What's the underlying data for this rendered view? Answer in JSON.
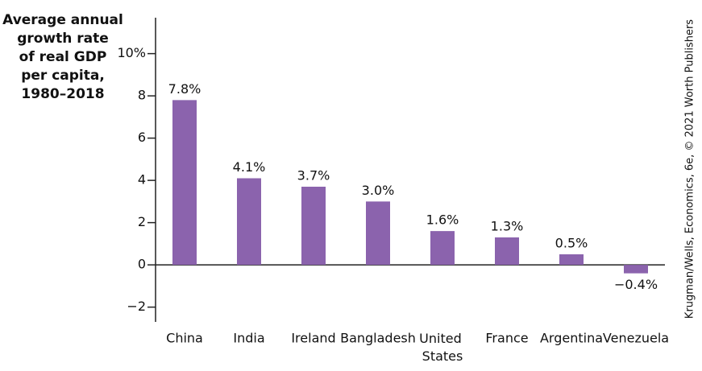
{
  "chart_data": {
    "type": "bar",
    "title": [
      "Average annual",
      "growth rate",
      "of real GDP",
      "per capita,",
      "1980–2018"
    ],
    "source": "Krugman/Wells, Economics, 6e, © 2021 Worth Publishers",
    "categories": [
      "China",
      "India",
      "Ireland",
      "Bangladesh",
      "United States",
      "France",
      "Argentina",
      "Venezuela"
    ],
    "values": [
      7.8,
      4.1,
      3.7,
      3.0,
      1.6,
      1.3,
      0.5,
      -0.4
    ],
    "value_labels": [
      "7.8%",
      "4.1%",
      "3.7%",
      "3.0%",
      "1.6%",
      "1.3%",
      "0.5%",
      "−0.4%"
    ],
    "color": "#8b63ad",
    "ylim": [
      -2.7,
      11.7
    ],
    "yticks": [
      {
        "value": -2,
        "label": "−2"
      },
      0,
      2,
      4,
      6,
      8,
      {
        "value": 10,
        "label": "10%"
      }
    ]
  }
}
